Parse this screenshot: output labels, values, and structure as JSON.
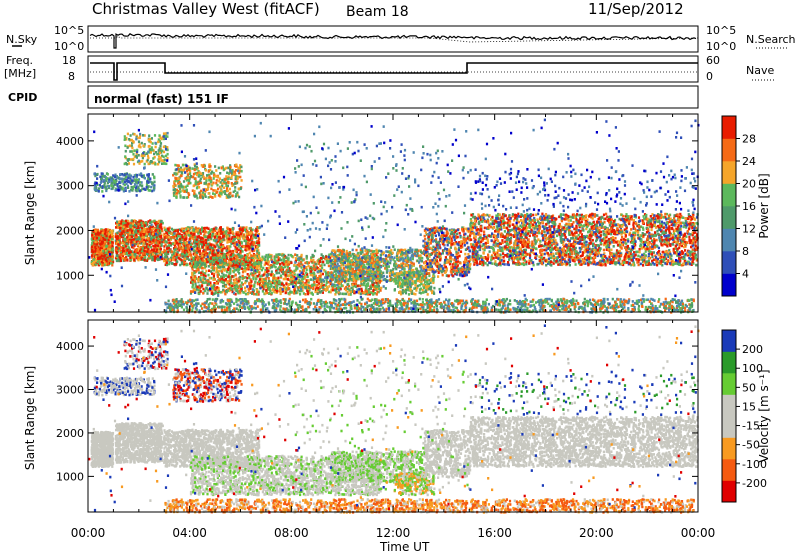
{
  "header": {
    "station": "Christmas Valley West (fitACF)",
    "beam": "Beam 18",
    "date": "11/Sep/2012"
  },
  "top_panels": {
    "nsky_label": "N.Sky",
    "nsearch_label": "N.Search",
    "nsky_ticks": [
      "10^5",
      "10^0"
    ],
    "nsearch_ticks": [
      "10^5",
      "10^0"
    ],
    "freq_label_1": "Freq.",
    "freq_label_2": "[MHz]",
    "freq_ticks": [
      "18",
      "8"
    ],
    "nave_label": "Nave",
    "nave_ticks": [
      "60",
      "0"
    ],
    "cpid_label": "CPID",
    "cpid_text": "normal (fast) 151 IF"
  },
  "colors": {
    "power": [
      "#0000cc",
      "#2f4fb8",
      "#4f86b0",
      "#4f9a6a",
      "#5cb85c",
      "#f5a52a",
      "#f56a16",
      "#e81c00"
    ],
    "velocity": [
      "#e00000",
      "#f55a10",
      "#f89a20",
      "#c8c8c0",
      "#c8c8c0",
      "#66cc33",
      "#2a9a2a",
      "#1a3ab8"
    ]
  },
  "chart_data": [
    {
      "type": "heatmap",
      "name": "power",
      "ylabel": "Slant Range [km]",
      "yticks": [
        "4000",
        "3000",
        "2000",
        "1000"
      ],
      "ylim": [
        180,
        4600
      ],
      "xlim": [
        0,
        24
      ],
      "colorbar_label": "Power [dB]",
      "colorbar_ticks": [
        "28",
        "24",
        "20",
        "16",
        "12",
        "8",
        "4"
      ],
      "colorbar_range": [
        0,
        32
      ]
    },
    {
      "type": "heatmap",
      "name": "velocity",
      "ylabel": "Slant Range [km]",
      "yticks": [
        "4000",
        "3000",
        "2000",
        "1000"
      ],
      "ylim": [
        180,
        4600
      ],
      "xlim": [
        0,
        24
      ],
      "colorbar_label": "Velocity [m s⁻¹]",
      "colorbar_ticks": [
        "200",
        "100",
        "50",
        "15",
        "-15",
        "-50",
        "-100",
        "-200"
      ]
    }
  ],
  "x_axis": {
    "ticks": [
      "00:00",
      "04:00",
      "08:00",
      "12:00",
      "16:00",
      "20:00",
      "00:00"
    ],
    "label": "Time UT"
  }
}
